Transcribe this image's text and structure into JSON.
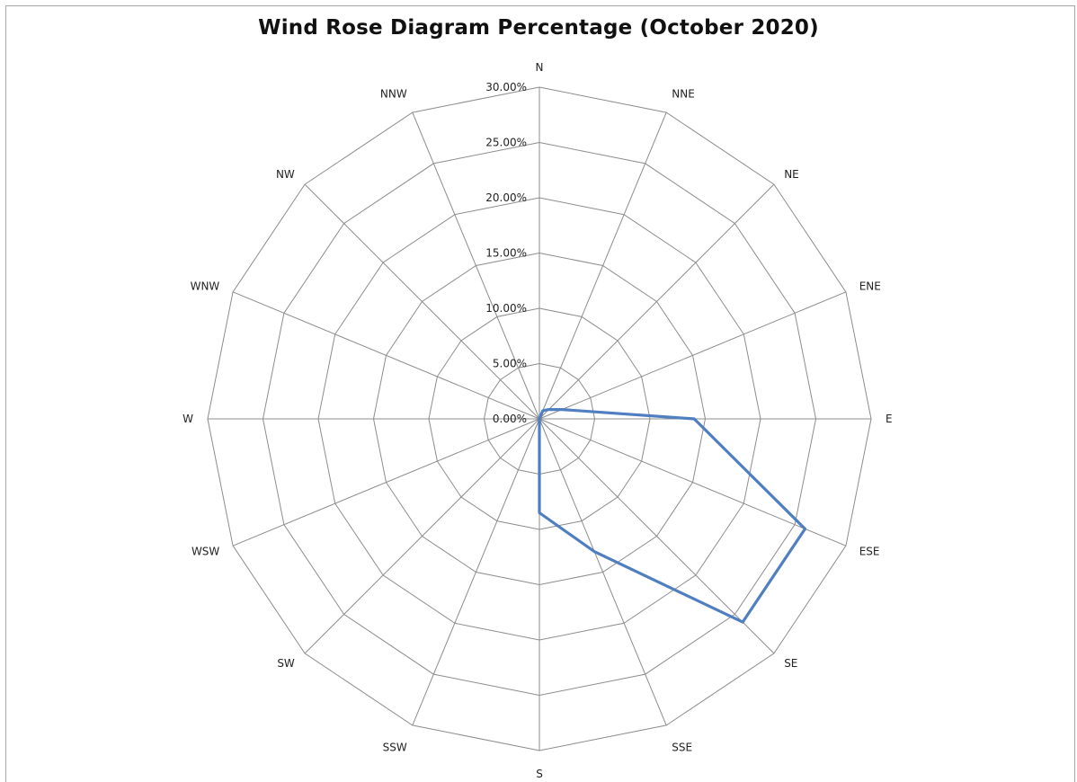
{
  "chart_data": {
    "type": "radar",
    "title": "Wind Rose Diagram Percentage (October 2020)",
    "directions": [
      "N",
      "NNE",
      "NE",
      "ENE",
      "E",
      "ESE",
      "SE",
      "SSE",
      "S",
      "SSW",
      "SW",
      "WSW",
      "W",
      "WNW",
      "NW",
      "NNW"
    ],
    "r_ticks": [
      "0.00%",
      "5.00%",
      "10.00%",
      "15.00%",
      "20.00%",
      "25.00%",
      "30.00%"
    ],
    "r_range": [
      0,
      30
    ],
    "grid": true,
    "series": [
      {
        "values": [
          0.0,
          0.8,
          1.2,
          2.2,
          14.0,
          26.0,
          26.0,
          13.0,
          8.5,
          0.0,
          0.0,
          0.0,
          0.0,
          0.0,
          0.0,
          0.0
        ],
        "color": "#4f7fc0"
      }
    ]
  }
}
